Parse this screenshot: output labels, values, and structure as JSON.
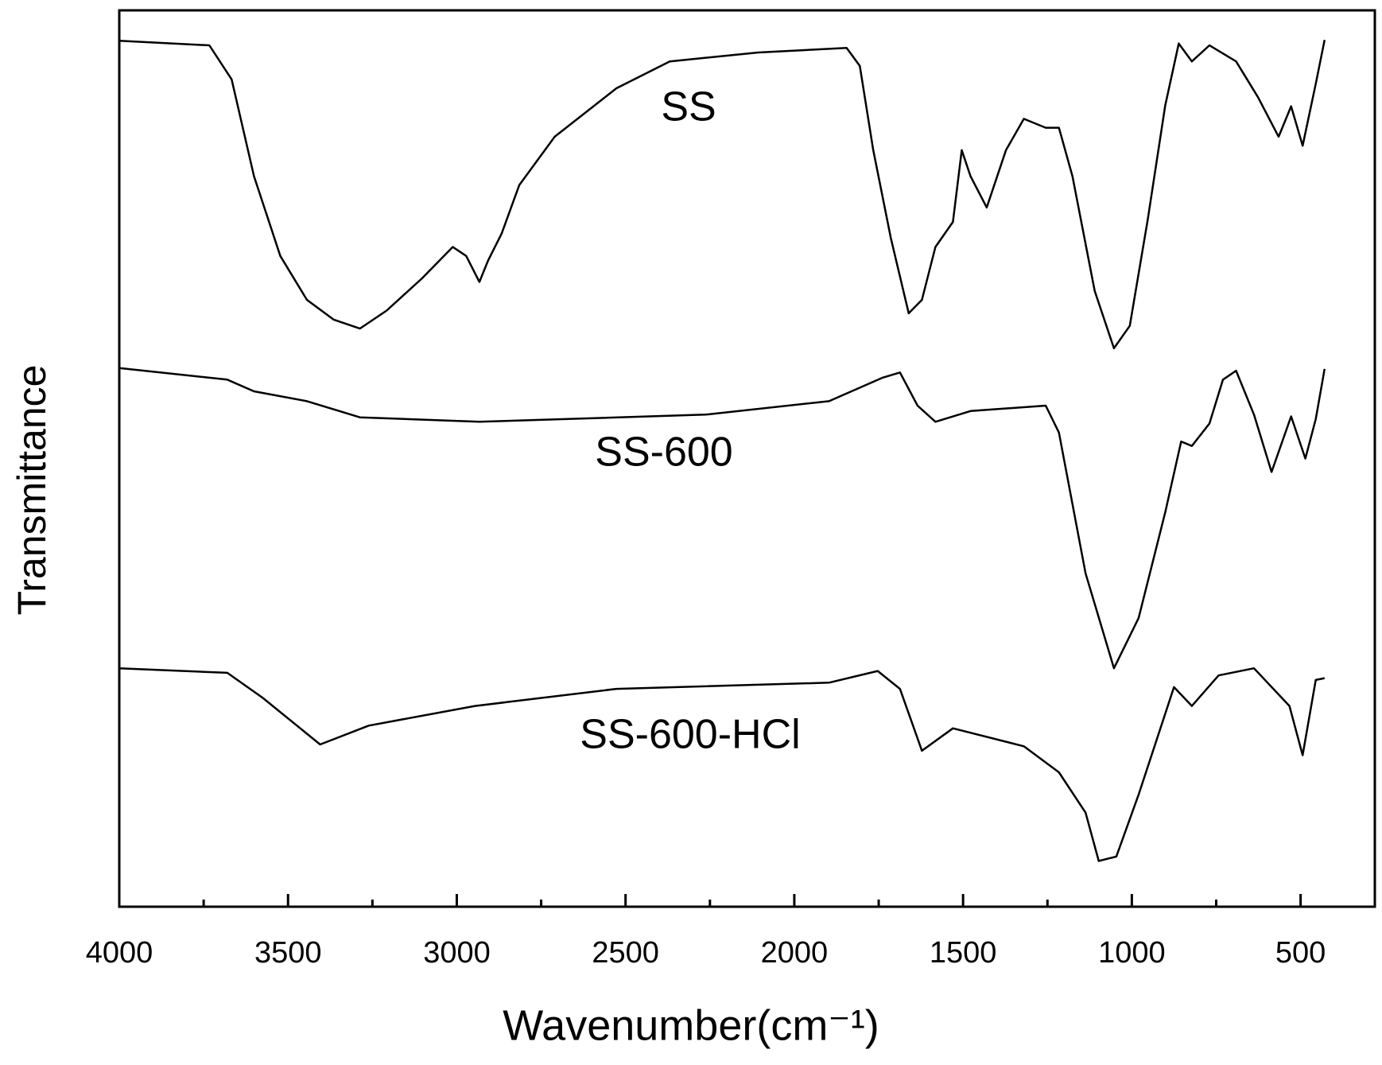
{
  "chart_data": {
    "type": "line",
    "xlabel": "Wavenumber(cm⁻¹)",
    "ylabel": "Transmittance",
    "xlim": [
      4000,
      280
    ],
    "ylim": [
      0,
      100
    ],
    "xticks": [
      4000,
      3500,
      3000,
      2500,
      2000,
      1500,
      1000,
      500
    ],
    "xminorticks": [
      3750,
      3250,
      2750,
      2250,
      1750,
      1250,
      750
    ],
    "grid": false,
    "series": [
      {
        "name": "SS",
        "color": "#000000",
        "x": [
          4000,
          3733,
          3667,
          3601,
          3523,
          3444,
          3365,
          3287,
          3208,
          3103,
          3012,
          2972,
          2933,
          2907,
          2867,
          2815,
          2710,
          2527,
          2369,
          2107,
          1845,
          1806,
          1766,
          1714,
          1661,
          1622,
          1582,
          1530,
          1504,
          1478,
          1430,
          1373,
          1320,
          1255,
          1216,
          1176,
          1110,
          1053,
          1006,
          953,
          901,
          861,
          822,
          770,
          691,
          626,
          565,
          528,
          494,
          455,
          429
        ],
        "values": [
          96.6,
          96.1,
          92.3,
          81.5,
          72.6,
          67.7,
          65.5,
          64.5,
          66.5,
          70.1,
          73.6,
          72.6,
          69.7,
          72.1,
          75.1,
          80.5,
          85.9,
          91.3,
          94.3,
          95.3,
          95.8,
          93.8,
          84.4,
          74.6,
          66.2,
          67.7,
          73.6,
          76.4,
          84.4,
          81.5,
          78.0,
          84.4,
          87.9,
          86.9,
          86.9,
          81.5,
          68.7,
          62.3,
          64.8,
          76.6,
          89.4,
          96.3,
          94.3,
          96.1,
          94.3,
          90.3,
          85.9,
          89.3,
          84.9,
          91.8,
          96.7
        ]
      },
      {
        "name": "SS-600",
        "color": "#000000",
        "x": [
          4000,
          3680,
          3601,
          3444,
          3287,
          2933,
          2264,
          1897,
          1740,
          1687,
          1635,
          1582,
          1478,
          1255,
          1216,
          1137,
          1053,
          980,
          901,
          854,
          822,
          770,
          730,
          691,
          638,
          586,
          528,
          486,
          455,
          429
        ],
        "values": [
          60.1,
          58.8,
          57.5,
          56.4,
          54.6,
          54.1,
          54.9,
          56.4,
          59.0,
          59.6,
          55.9,
          54.1,
          55.3,
          55.9,
          52.9,
          37.2,
          26.6,
          32.2,
          44.0,
          51.9,
          51.4,
          53.9,
          58.8,
          59.8,
          54.9,
          48.5,
          54.7,
          50.0,
          54.4,
          60.0
        ]
      },
      {
        "name": "SS-600-HCl",
        "color": "#000000",
        "x": [
          4000,
          3680,
          3575,
          3405,
          3261,
          2946,
          2527,
          1897,
          1753,
          1687,
          1622,
          1530,
          1320,
          1216,
          1137,
          1098,
          1046,
          980,
          875,
          822,
          743,
          638,
          533,
          494,
          455,
          429
        ],
        "values": [
          26.6,
          26.1,
          23.3,
          18.1,
          20.2,
          22.4,
          24.3,
          25.0,
          26.3,
          24.3,
          17.4,
          19.9,
          17.9,
          15.0,
          10.5,
          5.1,
          5.6,
          12.5,
          24.5,
          22.4,
          25.8,
          26.6,
          22.4,
          16.9,
          25.3,
          25.5
        ]
      }
    ]
  }
}
